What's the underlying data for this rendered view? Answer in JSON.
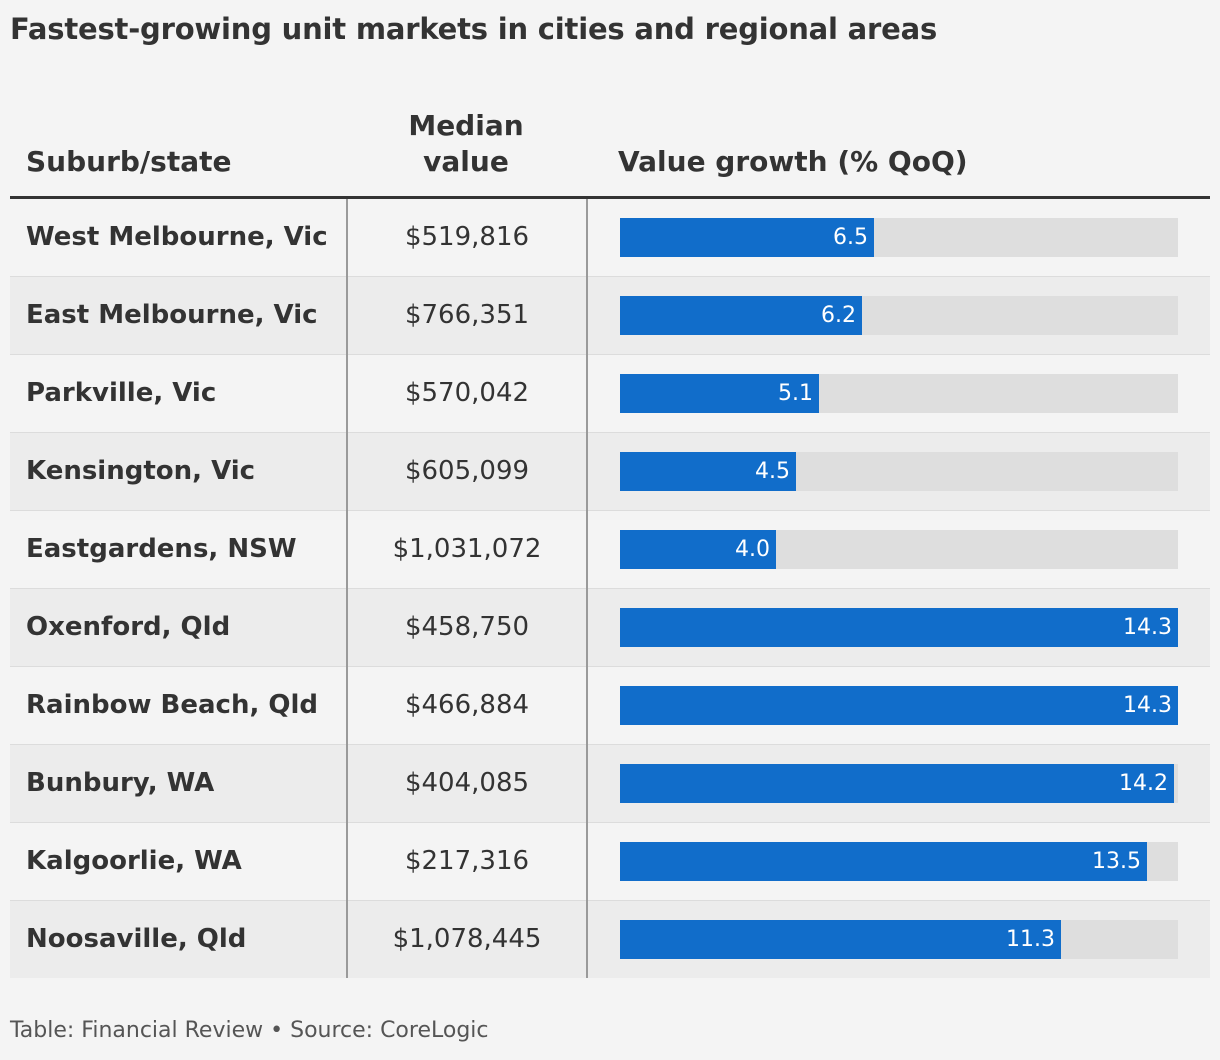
{
  "title": "Fastest-growing unit markets in cities and regional areas",
  "columns": {
    "suburb": "Suburb/state",
    "median_line1": "Median",
    "median_line2": "value",
    "growth": "Value growth (% QoQ)"
  },
  "footer": {
    "credit": "Table: Financial Review",
    "separator": "•",
    "source": "Source: CoreLogic"
  },
  "colors": {
    "bar": "#116dca",
    "track": "#dedede"
  },
  "chart_data": {
    "type": "table",
    "bar_max": 14.3,
    "rows": [
      {
        "suburb": "West Melbourne, Vic",
        "median": "$519,816",
        "growth": 6.5,
        "growth_label": "6.5"
      },
      {
        "suburb": "East Melbourne, Vic",
        "median": "$766,351",
        "growth": 6.2,
        "growth_label": "6.2"
      },
      {
        "suburb": "Parkville, Vic",
        "median": "$570,042",
        "growth": 5.1,
        "growth_label": "5.1"
      },
      {
        "suburb": "Kensington, Vic",
        "median": "$605,099",
        "growth": 4.5,
        "growth_label": "4.5"
      },
      {
        "suburb": "Eastgardens, NSW",
        "median": "$1,031,072",
        "growth": 4.0,
        "growth_label": "4.0"
      },
      {
        "suburb": "Oxenford, Qld",
        "median": "$458,750",
        "growth": 14.3,
        "growth_label": "14.3"
      },
      {
        "suburb": "Rainbow Beach, Qld",
        "median": "$466,884",
        "growth": 14.3,
        "growth_label": "14.3"
      },
      {
        "suburb": "Bunbury, WA",
        "median": "$404,085",
        "growth": 14.2,
        "growth_label": "14.2"
      },
      {
        "suburb": "Kalgoorlie, WA",
        "median": "$217,316",
        "growth": 13.5,
        "growth_label": "13.5"
      },
      {
        "suburb": "Noosaville, Qld",
        "median": "$1,078,445",
        "growth": 11.3,
        "growth_label": "11.3"
      }
    ]
  }
}
